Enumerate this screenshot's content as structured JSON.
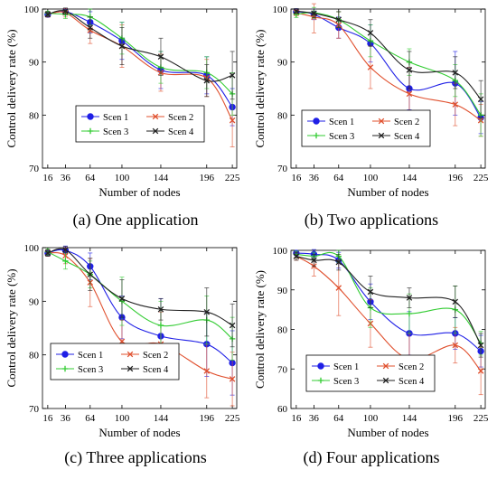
{
  "series_colors": [
    "#1f1fe6",
    "#e0502e",
    "#33cc33",
    "#222222"
  ],
  "chart_data": [
    {
      "type": "line",
      "caption": "(a) One application",
      "xlabel": "Number of nodes",
      "ylabel": "Control delivery rate (%)",
      "x": [
        16,
        36,
        64,
        100,
        144,
        196,
        225
      ],
      "xlim": [
        10,
        230
      ],
      "ylim": [
        70,
        100
      ],
      "yticks": [
        70,
        80,
        90,
        100
      ],
      "legend_position": "center",
      "series": [
        {
          "name": "Scen 1",
          "values": [
            99.0,
            99.5,
            97.5,
            94.0,
            88.5,
            87.5,
            81.5
          ],
          "errors": [
            0.5,
            0.6,
            2.0,
            3.5,
            3.5,
            3.5,
            3.5
          ]
        },
        {
          "name": "Scen 2",
          "values": [
            99.0,
            99.3,
            96.0,
            93.0,
            88.0,
            87.0,
            79.0
          ],
          "errors": [
            0.5,
            0.8,
            2.5,
            4.0,
            3.5,
            3.5,
            5.0
          ]
        },
        {
          "name": "Scen 3",
          "values": [
            99.2,
            99.0,
            98.5,
            94.5,
            89.0,
            88.0,
            84.0
          ],
          "errors": [
            0.4,
            0.8,
            1.5,
            3.0,
            3.0,
            3.0,
            4.0
          ]
        },
        {
          "name": "Scen 4",
          "values": [
            99.0,
            99.6,
            96.5,
            93.0,
            91.0,
            86.5,
            87.5
          ],
          "errors": [
            0.5,
            0.6,
            2.0,
            3.5,
            3.5,
            3.0,
            4.5
          ]
        }
      ]
    },
    {
      "type": "line",
      "caption": "(b) Two applications",
      "xlabel": "Number of nodes",
      "ylabel": "Control delivery rate (%)",
      "x": [
        16,
        36,
        64,
        100,
        144,
        196,
        225
      ],
      "xlim": [
        10,
        230
      ],
      "ylim": [
        70,
        100
      ],
      "yticks": [
        70,
        80,
        90,
        100
      ],
      "legend_position": "bottom-right",
      "series": [
        {
          "name": "Scen 1",
          "values": [
            99.5,
            99.0,
            96.5,
            93.5,
            85.0,
            86.0,
            79.5
          ],
          "errors": [
            0.5,
            1.0,
            2.0,
            3.5,
            4.0,
            6.0,
            3.0
          ]
        },
        {
          "name": "Scen 2",
          "values": [
            99.3,
            98.5,
            97.0,
            89.0,
            84.0,
            82.0,
            79.0
          ],
          "errors": [
            0.6,
            3.0,
            2.5,
            4.0,
            5.0,
            4.0,
            3.0
          ]
        },
        {
          "name": "Scen 3",
          "values": [
            99.0,
            99.3,
            98.0,
            94.0,
            90.0,
            86.5,
            80.0
          ],
          "errors": [
            0.6,
            1.0,
            1.5,
            3.0,
            2.5,
            3.0,
            4.0
          ]
        },
        {
          "name": "Scen 4",
          "values": [
            99.6,
            99.2,
            98.0,
            95.5,
            88.5,
            88.0,
            83.0
          ],
          "errors": [
            0.5,
            0.8,
            1.5,
            2.5,
            3.5,
            3.0,
            3.5
          ]
        }
      ]
    },
    {
      "type": "line",
      "caption": "(c) Three applications",
      "xlabel": "Number of nodes",
      "ylabel": "Control delivery rate (%)",
      "x": [
        16,
        36,
        64,
        100,
        144,
        196,
        225
      ],
      "xlim": [
        10,
        230
      ],
      "ylim": [
        70,
        100
      ],
      "yticks": [
        70,
        80,
        90,
        100
      ],
      "legend_position": "bottom-left",
      "series": [
        {
          "name": "Scen 1",
          "values": [
            99.0,
            99.5,
            96.5,
            87.0,
            83.5,
            82.0,
            78.5
          ],
          "errors": [
            0.6,
            0.8,
            2.5,
            4.0,
            7.0,
            6.0,
            6.0
          ]
        },
        {
          "name": "Scen 2",
          "values": [
            99.0,
            98.5,
            93.5,
            82.5,
            82.0,
            77.0,
            75.5
          ],
          "errors": [
            0.6,
            1.5,
            4.5,
            4.0,
            6.0,
            5.0,
            5.0
          ]
        },
        {
          "name": "Scen 3",
          "values": [
            99.2,
            97.5,
            95.0,
            90.0,
            85.5,
            86.5,
            83.0
          ],
          "errors": [
            0.6,
            1.5,
            2.5,
            4.5,
            4.5,
            4.5,
            4.0
          ]
        },
        {
          "name": "Scen 4",
          "values": [
            99.0,
            99.6,
            95.0,
            90.5,
            88.5,
            88.0,
            85.5
          ],
          "errors": [
            0.6,
            0.6,
            3.0,
            3.5,
            2.0,
            4.5,
            4.0
          ]
        }
      ]
    },
    {
      "type": "line",
      "caption": "(d) Four applications",
      "xlabel": "Number of nodes",
      "ylabel": "Control delivery rate (%)",
      "x": [
        16,
        36,
        64,
        100,
        144,
        196,
        225
      ],
      "xlim": [
        10,
        230
      ],
      "ylim": [
        60,
        100
      ],
      "yticks": [
        60,
        70,
        80,
        90,
        100
      ],
      "legend_position": "bottom-center",
      "series": [
        {
          "name": "Scen 1",
          "values": [
            99.3,
            99.0,
            97.5,
            87.0,
            79.0,
            79.0,
            74.5
          ],
          "errors": [
            0.6,
            1.2,
            2.0,
            4.5,
            5.5,
            4.0,
            4.0
          ]
        },
        {
          "name": "Scen 2",
          "values": [
            98.5,
            96.0,
            90.5,
            81.5,
            72.5,
            76.0,
            69.5
          ],
          "errors": [
            1.0,
            2.5,
            7.0,
            6.0,
            6.5,
            4.5,
            6.0
          ]
        },
        {
          "name": "Scen 3",
          "values": [
            99.0,
            98.5,
            98.5,
            85.5,
            84.0,
            85.0,
            76.5
          ],
          "errors": [
            0.8,
            1.0,
            1.5,
            5.0,
            5.0,
            6.0,
            3.0
          ]
        },
        {
          "name": "Scen 4",
          "values": [
            98.5,
            97.5,
            97.0,
            89.5,
            88.0,
            87.0,
            76.0
          ],
          "errors": [
            1.0,
            1.5,
            2.0,
            4.0,
            2.5,
            4.0,
            3.0
          ]
        }
      ]
    }
  ]
}
